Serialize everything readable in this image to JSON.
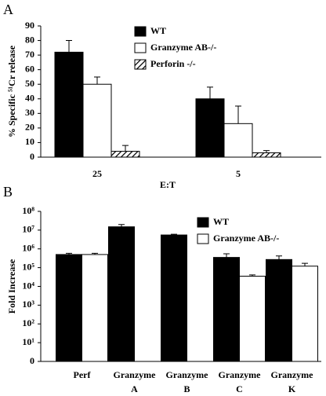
{
  "chart_data": [
    {
      "type": "bar",
      "panel_label": "A",
      "ylabel": "% Specific ⁵¹Cr release",
      "xlabel": "E:T",
      "categories": [
        "25",
        "5"
      ],
      "series": [
        {
          "name": "WT",
          "color": "#000000",
          "values": [
            72,
            40
          ],
          "errors": [
            8,
            8
          ]
        },
        {
          "name": "Granzyme AB-/-",
          "color": "#ffffff",
          "values": [
            50,
            23
          ],
          "errors": [
            5,
            12
          ]
        },
        {
          "name": "Perforin -/-",
          "color": "#000000",
          "pattern": "diagonal",
          "values": [
            4,
            3
          ],
          "errors": [
            4,
            1.5
          ]
        }
      ],
      "ylim": [
        0,
        90
      ],
      "yticks": [
        0,
        10,
        20,
        30,
        40,
        50,
        60,
        70,
        80,
        90
      ],
      "log": false
    },
    {
      "type": "bar",
      "panel_label": "B",
      "ylabel": "Fold Increase",
      "categories": [
        [
          "Perf"
        ],
        [
          "Granzyme",
          "A"
        ],
        [
          "Granzyme",
          "B"
        ],
        [
          "Granzyme",
          "C"
        ],
        [
          "Granzyme",
          "K"
        ]
      ],
      "series": [
        {
          "name": "WT",
          "color": "#000000",
          "values": [
            500000,
            15000000,
            5500000,
            350000,
            270000
          ],
          "errors": [
            80000,
            5000000,
            500000,
            200000,
            150000
          ]
        },
        {
          "name": "Granzyme AB-/-",
          "color": "#ffffff",
          "values": [
            500000,
            null,
            null,
            35000,
            120000
          ],
          "errors": [
            80000,
            null,
            null,
            6000,
            50000
          ]
        }
      ],
      "ylim": [
        1,
        100000000
      ],
      "log": true,
      "yticks": [
        {
          "value": 1,
          "label": "0"
        },
        {
          "value": 10,
          "label": "10¹"
        },
        {
          "value": 100,
          "label": "10²"
        },
        {
          "value": 1000,
          "label": "10³"
        },
        {
          "value": 10000,
          "label": "10⁴"
        },
        {
          "value": 100000,
          "label": "10⁵"
        },
        {
          "value": 1000000,
          "label": "10⁶"
        },
        {
          "value": 10000000,
          "label": "10⁷"
        },
        {
          "value": 100000000,
          "label": "10⁸"
        }
      ]
    }
  ]
}
